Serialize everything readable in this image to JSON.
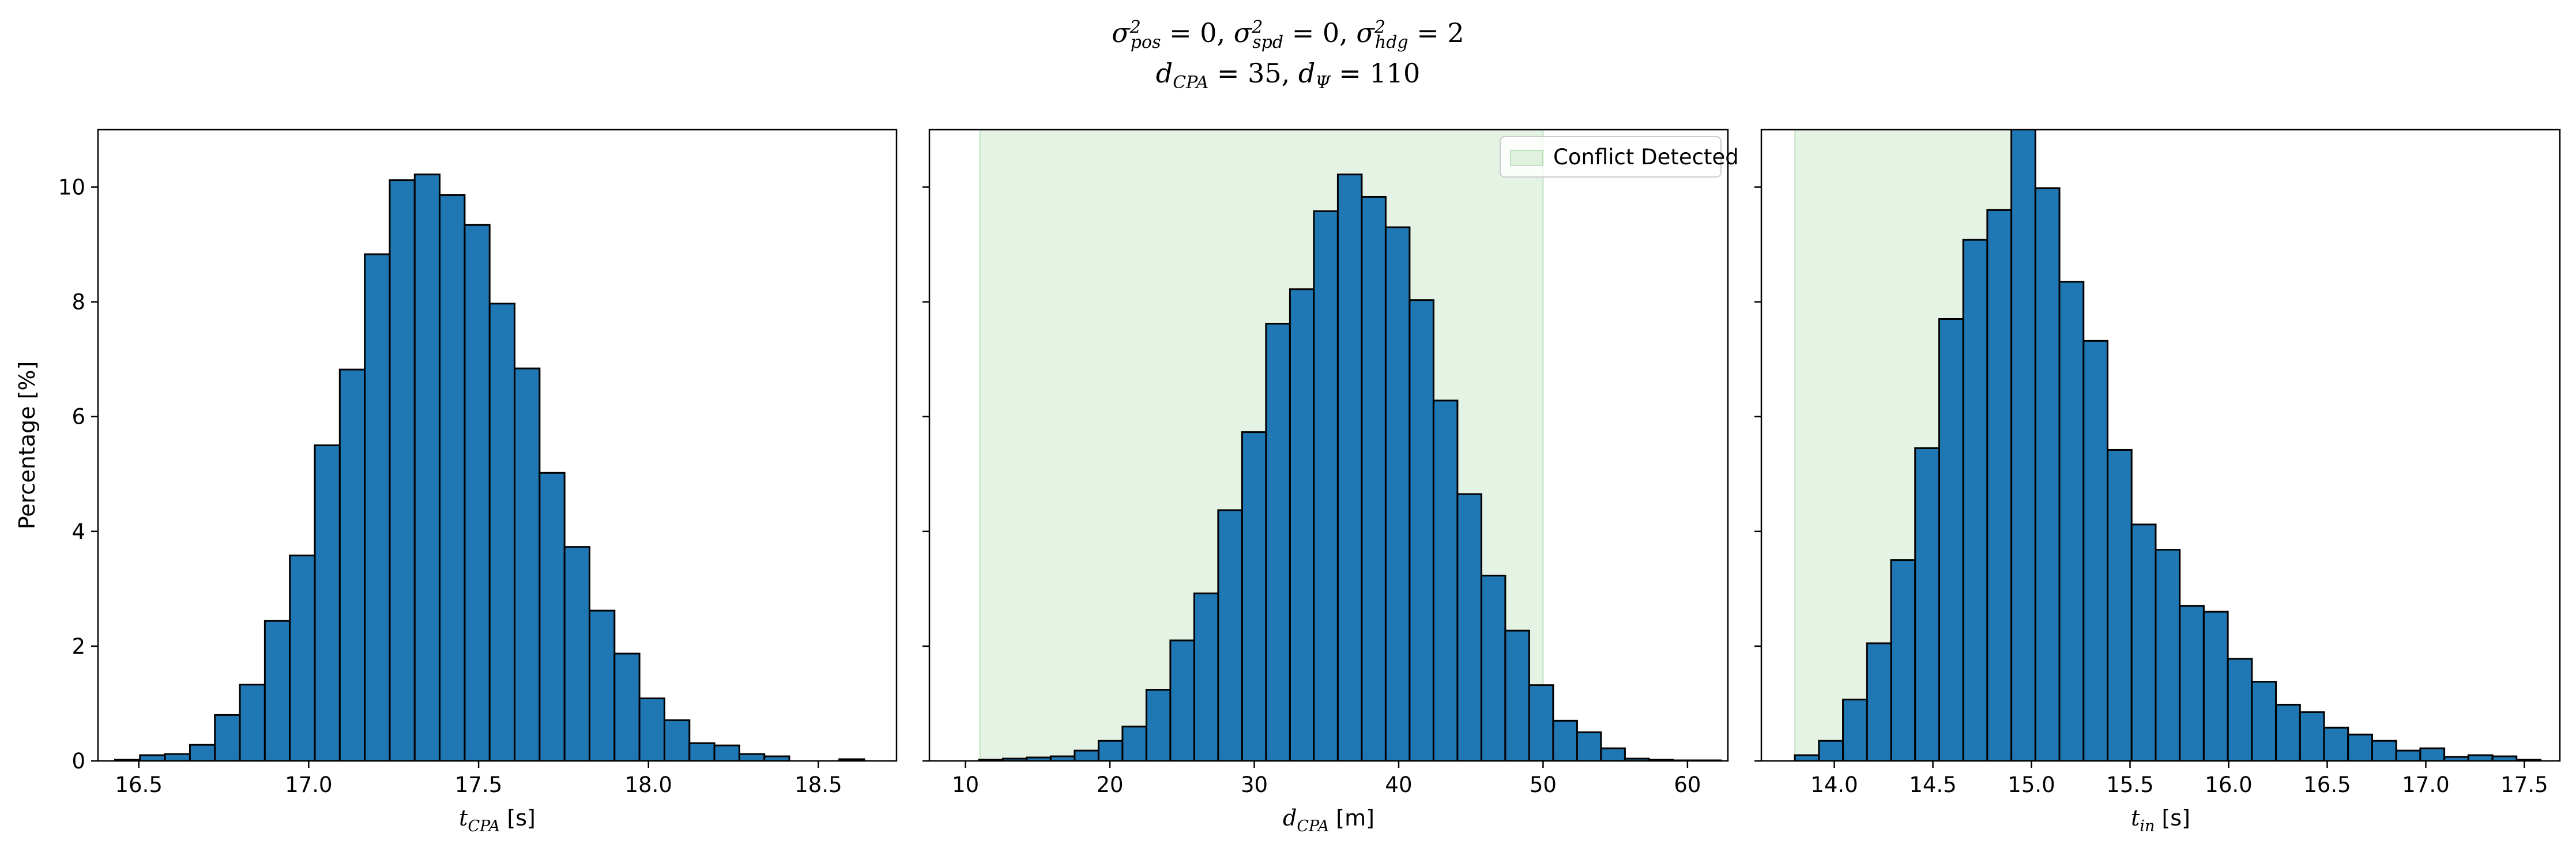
{
  "figure": {
    "title_line1_parts": [
      {
        "t": "σ",
        "sup": "2",
        "sub": "pos",
        "tail": " = 0, "
      },
      {
        "t": "σ",
        "sup": "2",
        "sub": "spd",
        "tail": " = 0, "
      },
      {
        "t": "σ",
        "sup": "2",
        "sub": "hdg",
        "tail": " = 2"
      }
    ],
    "title_line2_parts": [
      {
        "t": "d",
        "sub": "CPA",
        "tail": " = 35, "
      },
      {
        "t": "d",
        "sub": "Ψ",
        "tail": " = 110"
      }
    ],
    "bar_color": "#1f77b4",
    "shade_color": "#2ca02c"
  },
  "chart_data": [
    {
      "type": "bar",
      "ylabel": "Percentage [%]",
      "xlabel_main": "t",
      "xlabel_sub": "CPA",
      "xlabel_unit": " [s]",
      "xlim": [
        16.38,
        18.73
      ],
      "ylim": [
        0,
        11
      ],
      "xticks": [
        16.5,
        17.0,
        17.5,
        18.0,
        18.5
      ],
      "xtick_labels": [
        "16.5",
        "17.0",
        "17.5",
        "18.0",
        "18.5"
      ],
      "yticks": [
        0,
        2,
        4,
        6,
        8,
        10
      ],
      "ytick_labels": [
        "0",
        "2",
        "4",
        "6",
        "8",
        "10"
      ],
      "bin_start": 16.43,
      "bin_width": 0.0735,
      "values": [
        0.02,
        0.1,
        0.12,
        0.28,
        0.8,
        1.33,
        2.44,
        3.58,
        5.5,
        6.82,
        8.83,
        10.12,
        10.22,
        9.86,
        9.34,
        7.97,
        6.84,
        5.02,
        3.73,
        2.62,
        1.87,
        1.09,
        0.71,
        0.31,
        0.27,
        0.12,
        0.08,
        0.0,
        0.0,
        0.03
      ],
      "shaded": null,
      "legend": null
    },
    {
      "type": "bar",
      "ylabel": "",
      "xlabel_main": "d",
      "xlabel_sub": "CPA",
      "xlabel_unit": " [m]",
      "xlim": [
        7.5,
        62.8
      ],
      "ylim": [
        0,
        11
      ],
      "xticks": [
        10,
        20,
        30,
        40,
        50,
        60
      ],
      "xtick_labels": [
        "10",
        "20",
        "30",
        "40",
        "50",
        "60"
      ],
      "yticks": [
        0,
        2,
        4,
        6,
        8,
        10
      ],
      "ytick_labels": [
        "",
        "",
        "",
        "",
        "",
        ""
      ],
      "bin_start": 10.93,
      "bin_width": 1.657,
      "values": [
        0.02,
        0.04,
        0.06,
        0.08,
        0.18,
        0.35,
        0.6,
        1.24,
        2.1,
        2.92,
        4.37,
        5.73,
        7.62,
        8.22,
        9.58,
        10.22,
        9.83,
        9.3,
        8.03,
        6.28,
        4.65,
        3.23,
        2.27,
        1.32,
        0.7,
        0.5,
        0.22,
        0.04,
        0.02,
        0.01,
        0.01
      ],
      "shaded": [
        11.0,
        50.0
      ],
      "legend": "Conflict Detected"
    },
    {
      "type": "bar",
      "ylabel": "",
      "xlabel_main": "t",
      "xlabel_sub": "in",
      "xlabel_unit": " [s]",
      "xlim": [
        13.63,
        17.68
      ],
      "ylim": [
        0,
        11
      ],
      "xticks": [
        14.0,
        14.5,
        15.0,
        15.5,
        16.0,
        16.5,
        17.0,
        17.5
      ],
      "xtick_labels": [
        "14.0",
        "14.5",
        "15.0",
        "15.5",
        "16.0",
        "16.5",
        "17.0",
        "17.5"
      ],
      "yticks": [
        0,
        2,
        4,
        6,
        8,
        10
      ],
      "ytick_labels": [
        "",
        "",
        "",
        "",
        "",
        ""
      ],
      "bin_start": 13.8,
      "bin_width": 0.122,
      "values": [
        0.1,
        0.35,
        1.07,
        2.05,
        3.5,
        5.45,
        7.7,
        9.08,
        9.6,
        11.2,
        9.98,
        8.35,
        7.32,
        5.42,
        4.12,
        3.68,
        2.7,
        2.6,
        1.78,
        1.38,
        0.98,
        0.85,
        0.58,
        0.46,
        0.35,
        0.18,
        0.22,
        0.07,
        0.1,
        0.08,
        0.02
      ],
      "shaded": [
        13.8,
        14.97
      ],
      "legend": null
    }
  ]
}
